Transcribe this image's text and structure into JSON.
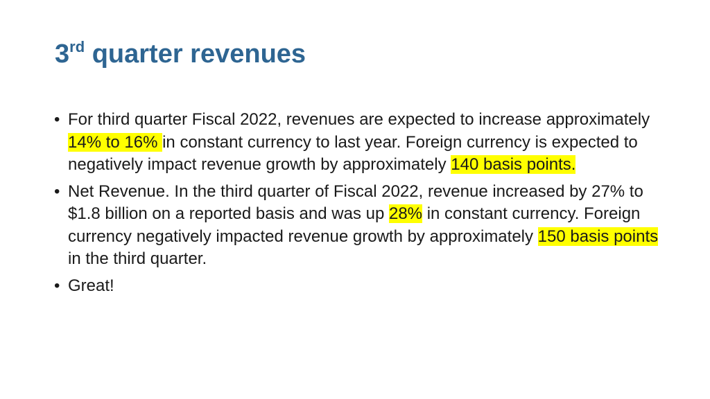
{
  "slide": {
    "title": {
      "number": "3",
      "superscript": "rd",
      "rest": " quarter revenues"
    },
    "bullets": [
      {
        "segments": [
          {
            "text": "For third quarter Fiscal 2022, revenues are expected to increase approximately ",
            "highlight": false
          },
          {
            "text": "14% to 16% ",
            "highlight": true
          },
          {
            "text": "in constant currency to last year. Foreign currency is expected to negatively impact revenue growth by approximately ",
            "highlight": false
          },
          {
            "text": "140 basis points.",
            "highlight": true
          }
        ]
      },
      {
        "segments": [
          {
            "text": "Net Revenue. In the third quarter of Fiscal 2022, revenue increased by 27% to $1.8 billion on a reported basis and was up ",
            "highlight": false
          },
          {
            "text": "28%",
            "highlight": true
          },
          {
            "text": " in constant currency. Foreign currency negatively impacted revenue growth by approximately ",
            "highlight": false
          },
          {
            "text": "150 basis points ",
            "highlight": true
          },
          {
            "text": "in the third quarter.",
            "highlight": false
          }
        ]
      },
      {
        "segments": [
          {
            "text": "Great!",
            "highlight": false
          }
        ]
      }
    ],
    "bullet_glyph": "•",
    "highlight_color": "#ffff00",
    "title_color": "#2e6592"
  }
}
